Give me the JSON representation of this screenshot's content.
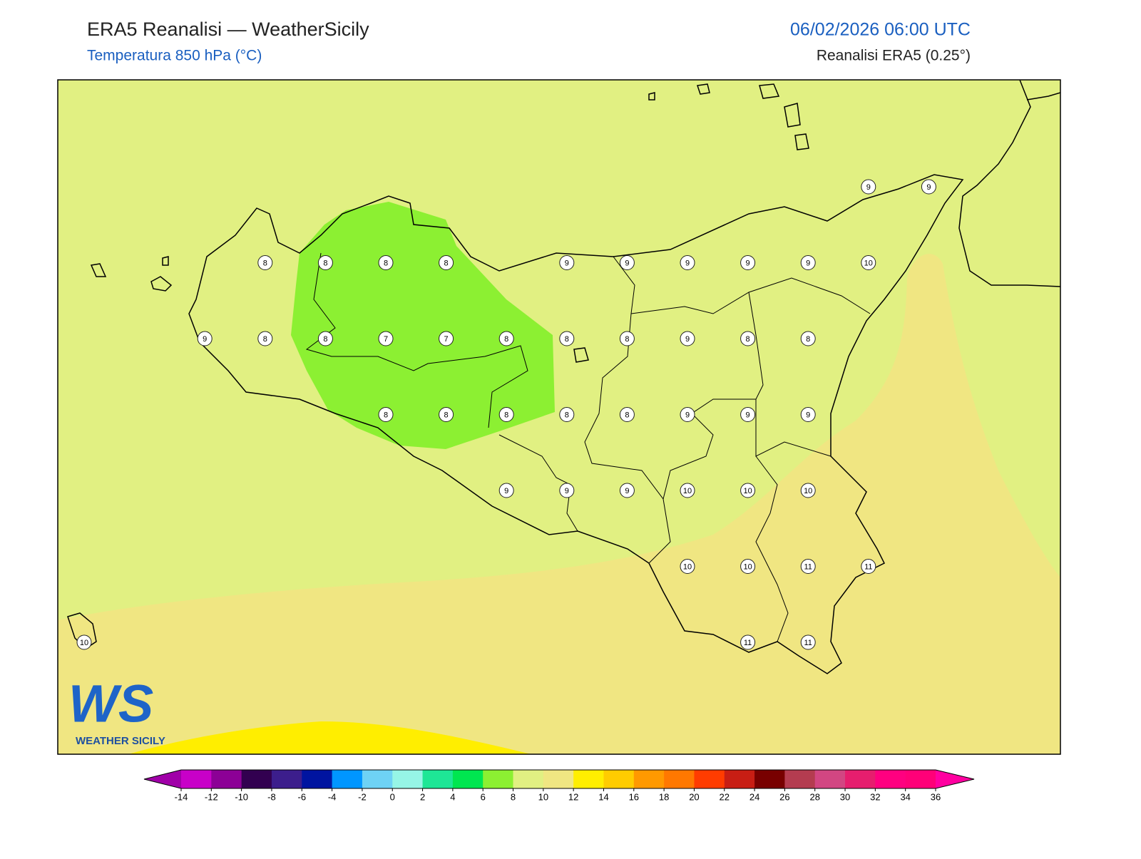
{
  "header": {
    "title": "ERA5 Reanalisi — WeatherSicily",
    "subtitle": "Temperatura 850 hPa (°C)",
    "datetime": "06/02/2026 06:00 UTC",
    "source": "Reanalisi ERA5 (0.25°)"
  },
  "map": {
    "station_grid": [
      [
        null,
        null,
        null,
        null,
        null,
        null,
        null,
        null,
        null,
        null,
        null,
        null,
        null,
        9,
        9
      ],
      [
        null,
        null,
        null,
        8,
        8,
        8,
        8,
        null,
        9,
        9,
        9,
        9,
        9,
        10,
        null
      ],
      [
        null,
        null,
        9,
        8,
        8,
        7,
        7,
        8,
        8,
        8,
        9,
        8,
        8,
        null,
        null
      ],
      [
        null,
        null,
        null,
        null,
        null,
        8,
        8,
        8,
        8,
        8,
        9,
        9,
        9,
        null,
        null
      ],
      [
        null,
        null,
        null,
        null,
        null,
        null,
        null,
        9,
        9,
        9,
        10,
        10,
        10,
        null,
        null
      ],
      [
        null,
        null,
        null,
        null,
        null,
        null,
        null,
        null,
        null,
        null,
        10,
        10,
        11,
        11,
        null
      ],
      [
        10,
        null,
        null,
        null,
        null,
        null,
        null,
        null,
        null,
        null,
        null,
        11,
        11,
        null,
        null
      ]
    ]
  },
  "colorbar": {
    "ticks": [
      -14,
      -12,
      -10,
      -8,
      -6,
      -4,
      -2,
      0,
      2,
      4,
      6,
      8,
      10,
      12,
      14,
      16,
      18,
      20,
      22,
      24,
      26,
      28,
      30,
      32,
      34,
      36
    ],
    "colors": [
      "#a000a8",
      "#c800c8",
      "#8c0096",
      "#320050",
      "#3c1e8c",
      "#0014a0",
      "#0096ff",
      "#6ed2f5",
      "#96f5e6",
      "#1ee696",
      "#00e650",
      "#8cf032",
      "#e1f082",
      "#f0e682",
      "#ffee00",
      "#ffcc00",
      "#ff9900",
      "#ff7800",
      "#ff3c00",
      "#c81e14",
      "#780000",
      "#b43c50",
      "#d24682",
      "#e61e6e",
      "#ff0080",
      "#ff0078",
      "#ff00a0"
    ]
  },
  "logo": {
    "mark": "WS",
    "text": "WEATHER SICILY"
  }
}
